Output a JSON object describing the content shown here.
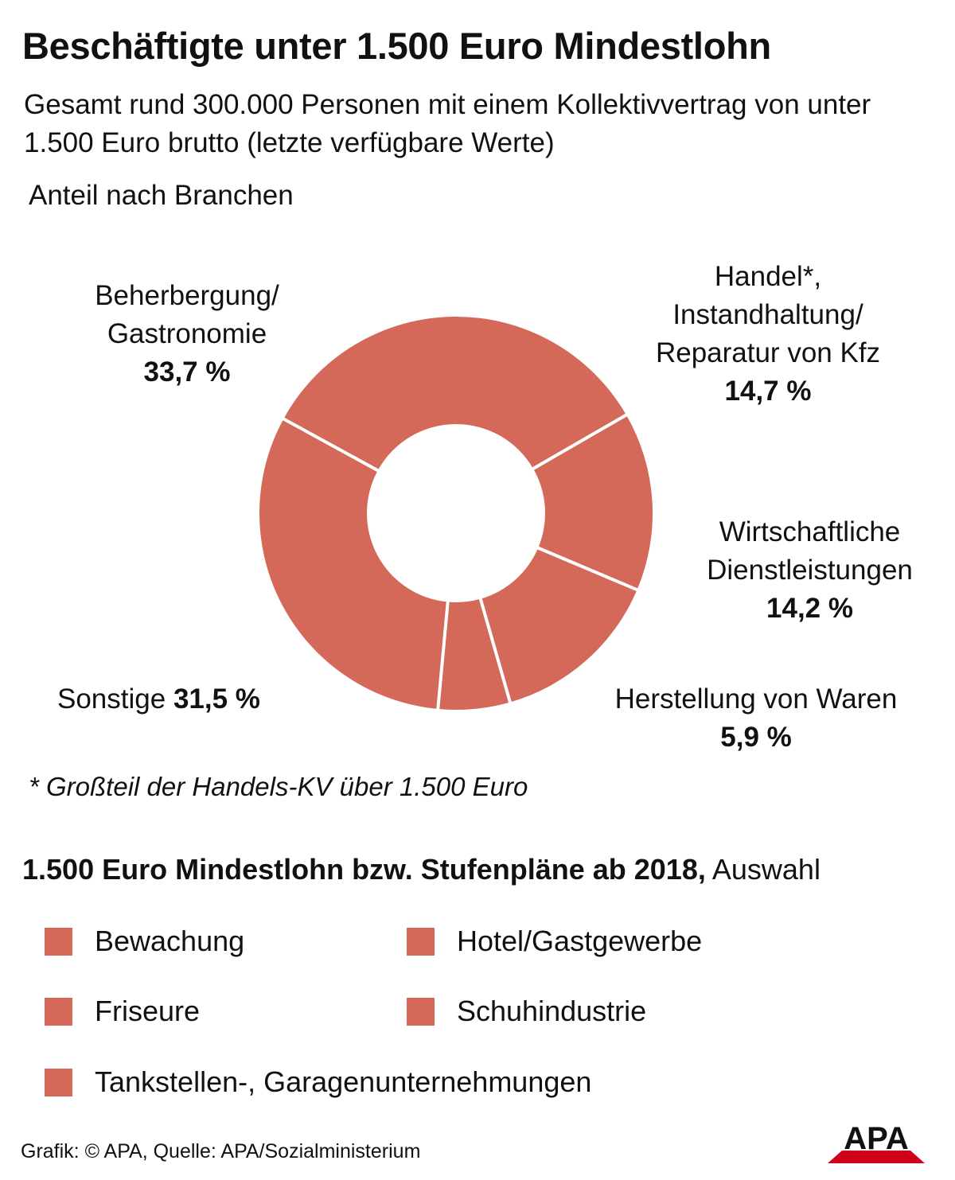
{
  "title": "Beschäftigte unter 1.500 Euro Mindestlohn",
  "subtitle": "Gesamt rund 300.000 Personen mit einem Kollektivvertrag von unter 1.500 Euro brutto (letzte verfügbare Werte)",
  "section_label": "Anteil nach Branchen",
  "colors": {
    "slice": "#d4695a",
    "separator": "#ffffff",
    "logo_text": "#111111",
    "logo_mark": "#d0021b"
  },
  "chart_data": {
    "type": "pie",
    "variant": "donut",
    "title": "Anteil nach Branchen",
    "slices": [
      {
        "label": "Beherbergung/ Gastronomie",
        "label_lines": [
          "Beherbergung/",
          "Gastronomie"
        ],
        "value": 33.7,
        "value_label": "33,7 %"
      },
      {
        "label": "Handel*, Instandhaltung/ Reparatur von Kfz",
        "label_lines": [
          "Handel*,",
          "Instandhaltung/",
          "Reparatur von Kfz"
        ],
        "value": 14.7,
        "value_label": "14,7 %"
      },
      {
        "label": "Wirtschaftliche Dienstleistungen",
        "label_lines": [
          "Wirtschaftliche",
          "Dienstleistungen"
        ],
        "value": 14.2,
        "value_label": "14,2 %"
      },
      {
        "label": "Herstellung von Waren",
        "label_lines": [
          "Herstellung von Waren"
        ],
        "value": 5.9,
        "value_label": "5,9 %"
      },
      {
        "label": "Sonstige",
        "label_lines": [
          "Sonstige"
        ],
        "value": 31.5,
        "value_label": "31,5 %"
      }
    ],
    "unit": "%"
  },
  "footnote": "* Großteil der Handels-KV über 1.500 Euro",
  "list": {
    "heading_bold": "1.500 Euro Mindestlohn bzw. Stufenpläne ab 2018,",
    "heading_regular": "Auswahl",
    "items": [
      "Bewachung",
      "Hotel/Gastgewerbe",
      "Friseure",
      "Schuhindustrie",
      "Tankstellen-, Garagenunternehmungen"
    ]
  },
  "credit": "Grafik: © APA, Quelle: APA/Sozialministerium",
  "logo": {
    "text": "APA"
  }
}
